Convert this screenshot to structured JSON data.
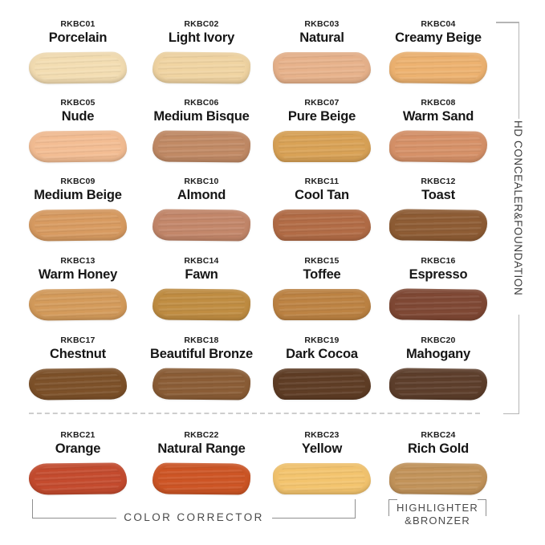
{
  "labels": {
    "right_group": "HD CONCEALER&FOUNDATION",
    "color_corrector": "COLOR CORRECTOR",
    "highlighter_line1": "HIGHLIGHTER",
    "highlighter_line2": "&BRONZER"
  },
  "colors": {
    "bracket_light": "#b5b5b5",
    "bracket_dark": "#8f8f8f",
    "text_dark": "#161616",
    "text_gray": "#4a4a4a"
  },
  "chart_data": {
    "type": "table",
    "columns": [
      "code",
      "name",
      "group",
      "swatch_color"
    ],
    "rows": [
      {
        "code": "RKBC01",
        "name": "Porcelain",
        "group": "HD CONCEALER&FOUNDATION",
        "swatch_color": "#f3ddb2"
      },
      {
        "code": "RKBC02",
        "name": "Light Ivory",
        "group": "HD CONCEALER&FOUNDATION",
        "swatch_color": "#f0d4a2"
      },
      {
        "code": "RKBC03",
        "name": "Natural",
        "group": "HD CONCEALER&FOUNDATION",
        "swatch_color": "#e7b28b"
      },
      {
        "code": "RKBC04",
        "name": "Creamy Beige",
        "group": "HD CONCEALER&FOUNDATION",
        "swatch_color": "#edb270"
      },
      {
        "code": "RKBC05",
        "name": "Nude",
        "group": "HD CONCEALER&FOUNDATION",
        "swatch_color": "#f3bd93"
      },
      {
        "code": "RKBC06",
        "name": "Medium Bisque",
        "group": "HD CONCEALER&FOUNDATION",
        "swatch_color": "#c18a65"
      },
      {
        "code": "RKBC07",
        "name": "Pure Beige",
        "group": "HD CONCEALER&FOUNDATION",
        "swatch_color": "#d9a256"
      },
      {
        "code": "RKBC08",
        "name": "Warm Sand",
        "group": "HD CONCEALER&FOUNDATION",
        "swatch_color": "#d69168"
      },
      {
        "code": "RKBC09",
        "name": "Medium Beige",
        "group": "HD CONCEALER&FOUNDATION",
        "swatch_color": "#d89b61"
      },
      {
        "code": "RKBC10",
        "name": "Almond",
        "group": "HD CONCEALER&FOUNDATION",
        "swatch_color": "#c3876a"
      },
      {
        "code": "RKBC11",
        "name": "Cool Tan",
        "group": "HD CONCEALER&FOUNDATION",
        "swatch_color": "#b26c46"
      },
      {
        "code": "RKBC12",
        "name": "Toast",
        "group": "HD CONCEALER&FOUNDATION",
        "swatch_color": "#8e5c34"
      },
      {
        "code": "RKBC13",
        "name": "Warm Honey",
        "group": "HD CONCEALER&FOUNDATION",
        "swatch_color": "#d49b5b"
      },
      {
        "code": "RKBC14",
        "name": "Fawn",
        "group": "HD CONCEALER&FOUNDATION",
        "swatch_color": "#c08d42"
      },
      {
        "code": "RKBC15",
        "name": "Toffee",
        "group": "HD CONCEALER&FOUNDATION",
        "swatch_color": "#bd8343"
      },
      {
        "code": "RKBC16",
        "name": "Espresso",
        "group": "HD CONCEALER&FOUNDATION",
        "swatch_color": "#7f4834"
      },
      {
        "code": "RKBC17",
        "name": "Chestnut",
        "group": "HD CONCEALER&FOUNDATION",
        "swatch_color": "#7d5129"
      },
      {
        "code": "RKBC18",
        "name": "Beautiful Bronze",
        "group": "HD CONCEALER&FOUNDATION",
        "swatch_color": "#8b5d36"
      },
      {
        "code": "RKBC19",
        "name": "Dark Cocoa",
        "group": "HD CONCEALER&FOUNDATION",
        "swatch_color": "#5f3d25"
      },
      {
        "code": "RKBC20",
        "name": "Mahogany",
        "group": "HD CONCEALER&FOUNDATION",
        "swatch_color": "#5d3e2b"
      },
      {
        "code": "RKBC21",
        "name": "Orange",
        "group": "COLOR CORRECTOR",
        "swatch_color": "#c44b2e"
      },
      {
        "code": "RKBC22",
        "name": "Natural Range",
        "group": "COLOR CORRECTOR",
        "swatch_color": "#cd5525"
      },
      {
        "code": "RKBC23",
        "name": "Yellow",
        "group": "COLOR CORRECTOR",
        "swatch_color": "#f3c46e"
      },
      {
        "code": "RKBC24",
        "name": "Rich Gold",
        "group": "HIGHLIGHTER&BRONZER",
        "swatch_color": "#c2935a"
      }
    ]
  }
}
